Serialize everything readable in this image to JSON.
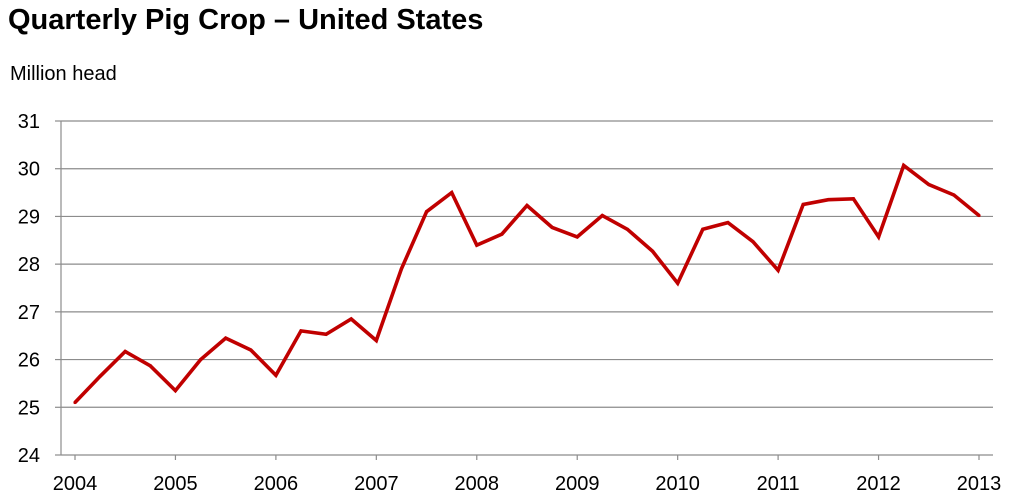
{
  "chart_data": {
    "type": "line",
    "title": "Quarterly Pig Crop – United States",
    "ylabel": "Million head",
    "xlabel": "",
    "ylim": [
      24,
      31
    ],
    "yticks": [
      24,
      25,
      26,
      27,
      28,
      29,
      30,
      31
    ],
    "xlim": [
      2004,
      2013
    ],
    "xticks": [
      "2004",
      "2005",
      "2006",
      "2007",
      "2008",
      "2009",
      "2010",
      "2011",
      "2012",
      "2013"
    ],
    "grid": true,
    "series": [
      {
        "color": "#c00000",
        "x": [
          2004.0,
          2004.25,
          2004.5,
          2004.75,
          2005.0,
          2005.25,
          2005.5,
          2005.75,
          2006.0,
          2006.25,
          2006.5,
          2006.75,
          2007.0,
          2007.25,
          2007.5,
          2007.75,
          2008.0,
          2008.25,
          2008.5,
          2008.75,
          2009.0,
          2009.25,
          2009.5,
          2009.75,
          2010.0,
          2010.25,
          2010.5,
          2010.75,
          2011.0,
          2011.25,
          2011.5,
          2011.75,
          2012.0,
          2012.25,
          2012.5,
          2012.75,
          2013.0
        ],
        "values": [
          25.1,
          25.65,
          26.17,
          25.87,
          25.35,
          26.0,
          26.45,
          26.2,
          25.67,
          26.6,
          26.53,
          26.85,
          26.4,
          27.9,
          29.1,
          29.5,
          28.4,
          28.63,
          29.23,
          28.77,
          28.57,
          29.02,
          28.73,
          28.27,
          27.6,
          28.73,
          28.87,
          28.47,
          27.87,
          29.25,
          29.35,
          29.37,
          28.57,
          30.07,
          29.67,
          29.45,
          29.02
        ]
      }
    ]
  }
}
